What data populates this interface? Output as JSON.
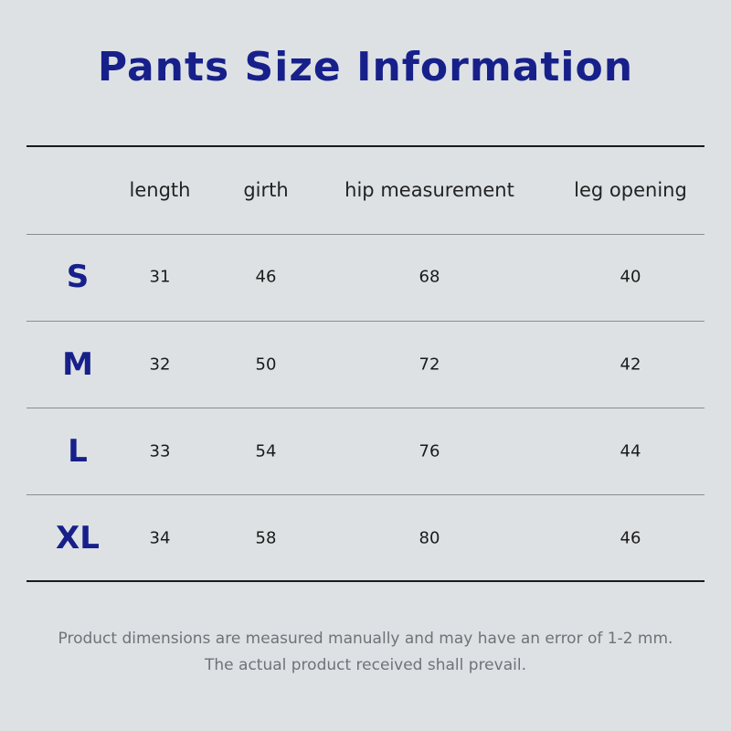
{
  "title": "Pants Size Information",
  "columns": [
    "length",
    "girth",
    "hip measurement",
    "leg opening"
  ],
  "rows": [
    {
      "size": "S",
      "values": [
        "31",
        "46",
        "68",
        "40"
      ]
    },
    {
      "size": "M",
      "values": [
        "32",
        "50",
        "72",
        "42"
      ]
    },
    {
      "size": "L",
      "values": [
        "33",
        "54",
        "76",
        "44"
      ]
    },
    {
      "size": "XL",
      "values": [
        "34",
        "58",
        "80",
        "46"
      ]
    }
  ],
  "notes": [
    "Product dimensions are measured manually and may have an error of 1-2 mm.",
    "The actual product received shall prevail."
  ],
  "colors": {
    "accent": "#17208a",
    "background": "#dde1e4"
  }
}
